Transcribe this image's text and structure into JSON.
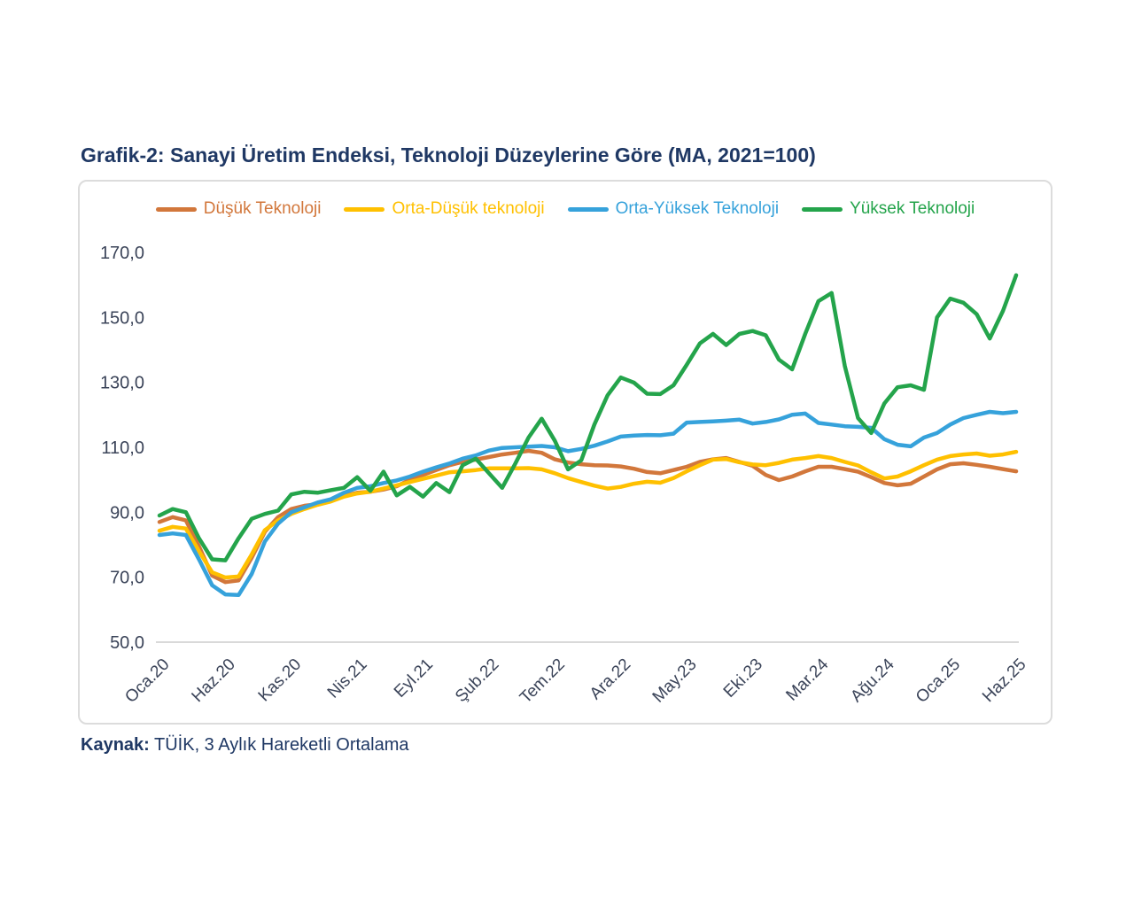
{
  "title": "Grafik-2: Sanayi Üretim Endeksi, Teknoloji Düzeylerine Göre (MA, 2021=100)",
  "source": {
    "label": "Kaynak:",
    "text": "TÜİK, 3 Aylık Hareketli Ortalama"
  },
  "colors": {
    "title_text": "#1f3864",
    "axis_text": "#3b4459",
    "axis_line": "#d9d9d9",
    "box_border": "#dcdcdc",
    "background": "#ffffff"
  },
  "chart_data": {
    "type": "line",
    "title": "Grafik-2: Sanayi Üretim Endeksi, Teknoloji Düzeylerine Göre (MA, 2021=100)",
    "xlabel": "",
    "ylabel": "",
    "ylim": [
      50,
      170
    ],
    "grid": false,
    "legend_position": "top",
    "n_points": 66,
    "x_label_every": 5,
    "x_labels": [
      "Oca.20",
      "Haz.20",
      "Kas.20",
      "Nis.21",
      "Eyl.21",
      "Şub.22",
      "Tem.22",
      "Ara.22",
      "May.23",
      "Eki.23",
      "Mar.24",
      "Ağu.24",
      "Oca.25",
      "Haz.25"
    ],
    "y_ticks": [
      170,
      150,
      130,
      110,
      90,
      70,
      50
    ],
    "y_tick_labels": [
      "170,0",
      "150,0",
      "130,0",
      "110,0",
      "90,0",
      "70,0",
      "50,0"
    ],
    "series": [
      {
        "name": "Düşük Teknoloji",
        "color": "#d2773b",
        "values": [
          87,
          88.5,
          87.5,
          79.5,
          70.5,
          68.5,
          69,
          76,
          84,
          88.5,
          91,
          92,
          92.5,
          93.5,
          95,
          96,
          96.3,
          97,
          98,
          100,
          101.5,
          103,
          104.5,
          105.5,
          106.2,
          107,
          107.8,
          108.3,
          108.9,
          108.3,
          106.3,
          105.3,
          104.8,
          104.5,
          104.4,
          104.1,
          103.4,
          102.4,
          102,
          103,
          104,
          105.5,
          106.3,
          106.7,
          105.5,
          104.3,
          101.5,
          99.9,
          101,
          102.6,
          104,
          104,
          103.3,
          102.5,
          100.8,
          99,
          98.3,
          98.8,
          101,
          103.2,
          104.8,
          105.1,
          104.6,
          104,
          103.3,
          102.6
        ]
      },
      {
        "name": "Orta-Düşük teknoloji",
        "color": "#ffc000",
        "values": [
          84.3,
          85.5,
          85,
          78,
          71.5,
          69.9,
          70.2,
          77,
          84.5,
          87.5,
          89.5,
          91,
          92.3,
          93.3,
          94.8,
          95.8,
          96.3,
          97.3,
          98.3,
          99.3,
          100.3,
          101.3,
          102.3,
          102.6,
          103,
          103.5,
          103.5,
          103.5,
          103.6,
          103.2,
          102,
          100.5,
          99.3,
          98.2,
          97.3,
          97.8,
          98.8,
          99.4,
          99.1,
          100.5,
          102.6,
          104.5,
          106.2,
          106.4,
          105.4,
          104.7,
          104.5,
          105.2,
          106.2,
          106.7,
          107.3,
          106.7,
          105.5,
          104.4,
          102.3,
          100.4,
          101,
          102.6,
          104.5,
          106.2,
          107.3,
          107.8,
          108.1,
          107.4,
          107.8,
          108.6
        ]
      },
      {
        "name": "Orta-Yüksek Teknoloji",
        "color": "#36a2db",
        "values": [
          83,
          83.5,
          83,
          75.5,
          67.5,
          64.7,
          64.5,
          71,
          81,
          86.5,
          90,
          91.5,
          93,
          94,
          96,
          97.5,
          98,
          99,
          99.8,
          101,
          102.5,
          103.8,
          105,
          106.5,
          107.5,
          109,
          109.8,
          110,
          110.2,
          110.4,
          110,
          108.8,
          109.5,
          110.5,
          111.8,
          113.3,
          113.6,
          113.8,
          113.7,
          114.2,
          117.6,
          117.8,
          118,
          118.2,
          118.5,
          117.3,
          117.8,
          118.6,
          120,
          120.4,
          117.5,
          117,
          116.5,
          116.3,
          116,
          112.5,
          110.8,
          110.3,
          113,
          114.4,
          117,
          119,
          120,
          120.9,
          120.5,
          120.9
        ]
      },
      {
        "name": "Yüksek Teknoloji",
        "color": "#24a44b",
        "values": [
          89,
          91,
          90,
          82,
          75.5,
          75.2,
          82,
          88,
          89.5,
          90.5,
          95.5,
          96.3,
          96,
          96.8,
          97.5,
          100.8,
          96.6,
          102.5,
          95.2,
          97.8,
          94.8,
          99,
          96.2,
          104.5,
          106.5,
          102,
          97.5,
          105,
          113,
          118.8,
          112,
          103.2,
          106,
          117,
          126,
          131.5,
          129.9,
          126.5,
          126.4,
          129.1,
          135.4,
          142,
          144.9,
          141.5,
          144.9,
          145.8,
          144.5,
          137,
          134,
          145,
          155,
          157.5,
          135,
          119,
          114.4,
          123.5,
          128.5,
          129.1,
          127.7,
          150,
          155.8,
          154.5,
          151,
          143.5,
          152,
          163
        ]
      }
    ]
  }
}
